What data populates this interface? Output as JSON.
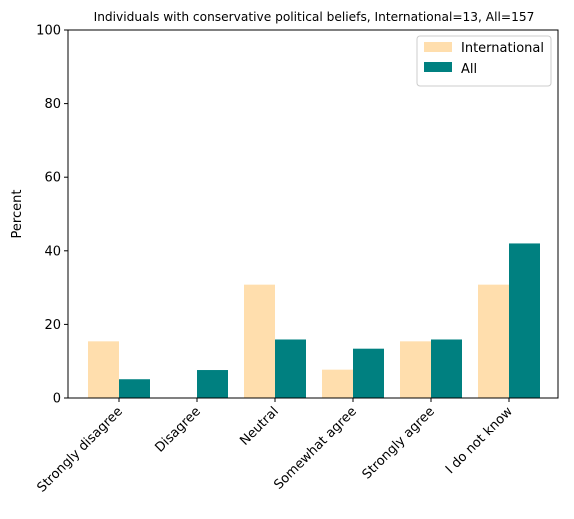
{
  "chart_data": {
    "type": "bar",
    "title": "Individuals with conservative political beliefs, International=13, All=157",
    "xlabel": "",
    "ylabel": "Percent",
    "ylim": [
      0,
      100
    ],
    "yticks": [
      0,
      20,
      40,
      60,
      80,
      100
    ],
    "categories": [
      "Strongly disagree",
      "Disagree",
      "Neutral",
      "Somewhat agree",
      "Strongly agree",
      "I do not know"
    ],
    "series": [
      {
        "name": "International",
        "color": "#FFDEAD",
        "values": [
          15.4,
          0,
          30.8,
          7.7,
          15.4,
          30.8
        ]
      },
      {
        "name": "All",
        "color": "#008080",
        "values": [
          5.1,
          7.6,
          15.9,
          13.4,
          15.9,
          42.0
        ]
      }
    ],
    "legend": "top-right",
    "grid": false
  }
}
